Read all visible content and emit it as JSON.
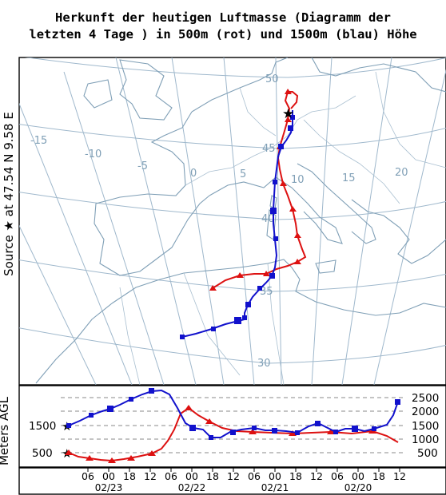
{
  "title": {
    "line1": "Herkunft der heutigen Luftmasse (Diagramm der",
    "line2": "letzten 4 Tage ) in 500m (rot) und 1500m (blau) Höhe"
  },
  "source_label": "Source ★ at 47.54 N 9.58 E",
  "source": {
    "lat": 47.54,
    "lon": 9.58
  },
  "map": {
    "lat_labels": [
      "50",
      "45",
      "40",
      "35",
      "30"
    ],
    "lon_labels": [
      "-15",
      "-10",
      "-5",
      "0",
      "5",
      "10",
      "15",
      "20"
    ]
  },
  "height_panel": {
    "ylabel": "Meters AGL",
    "left_marks": [
      "1500",
      "500"
    ],
    "right_ticks": [
      "2500",
      "2000",
      "1500",
      "1000",
      "500"
    ],
    "time_ticks": [
      "06",
      "00",
      "18",
      "12",
      "06",
      "00",
      "18",
      "12",
      "06",
      "00",
      "18",
      "12",
      "06",
      "00",
      "18",
      "12"
    ],
    "date_labels": [
      "02/23",
      "02/22",
      "02/21",
      "02/20"
    ]
  },
  "colors": {
    "red": "#dd1111",
    "blue": "#1111cc",
    "grid": "#9fb8cc",
    "coast": "#7f9fb6"
  },
  "chart_data": {
    "type": "line",
    "series": [
      {
        "name": "500m (rot)",
        "x": [
          "02/23 06",
          "02/23 00",
          "02/22 18",
          "02/22 12",
          "02/22 06",
          "02/22 00",
          "02/21 18",
          "02/21 12",
          "02/21 06",
          "02/21 00",
          "02/20 18",
          "02/20 12"
        ],
        "y": [
          250,
          150,
          120,
          300,
          600,
          2200,
          1700,
          1450,
          1350,
          1250,
          1250,
          800
        ]
      },
      {
        "name": "1500m (blau)",
        "x": [
          "02/23 06",
          "02/23 00",
          "02/22 18",
          "02/22 12",
          "02/22 06",
          "02/22 00",
          "02/21 18",
          "02/21 12",
          "02/21 06",
          "02/21 00",
          "02/20 18",
          "02/20 12"
        ],
        "y": [
          1700,
          2200,
          2450,
          2650,
          2650,
          1400,
          1150,
          1350,
          1250,
          1400,
          1350,
          2300
        ]
      }
    ],
    "ylim": [
      0,
      3000
    ]
  }
}
